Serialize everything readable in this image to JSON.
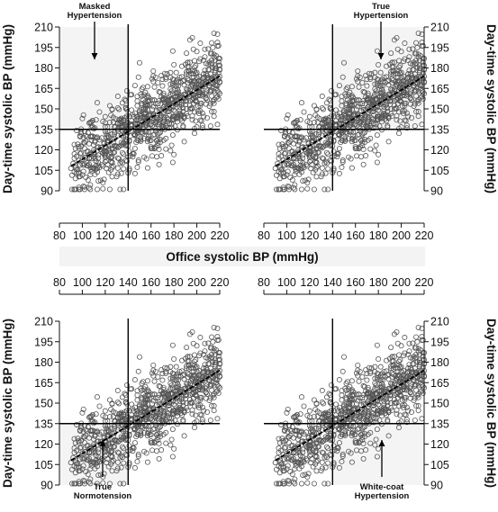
{
  "chart_data": {
    "type": "scatter",
    "xlabel": "Office systolic BP (mmHg)",
    "ylabel": "Day-time systolic BP (mmHg)",
    "xlim": [
      80,
      220
    ],
    "ylim": [
      90,
      210
    ],
    "x_ticks": [
      "80",
      "100",
      "120",
      "140",
      "160",
      "180",
      "200",
      "220"
    ],
    "y_ticks": [
      "90",
      "105",
      "120",
      "135",
      "150",
      "165",
      "180",
      "195",
      "210"
    ],
    "thresholds": {
      "office": 140,
      "daytime": 135
    },
    "regression": {
      "x": [
        90,
        220
      ],
      "y": [
        108,
        174
      ]
    },
    "grid": false,
    "panels": [
      {
        "position": "top-left",
        "annotation_lines": [
          "Masked",
          "Hypertension"
        ],
        "highlighted_quadrant": "upper-left",
        "arrow": "down"
      },
      {
        "position": "top-right",
        "annotation_lines": [
          "True",
          "Hypertension"
        ],
        "highlighted_quadrant": "upper-right",
        "arrow": "down"
      },
      {
        "position": "bottom-left",
        "annotation_lines": [
          "True",
          "Normotension"
        ],
        "highlighted_quadrant": "lower-left",
        "arrow": "up"
      },
      {
        "position": "bottom-right",
        "annotation_lines": [
          "White-coat",
          "Hypertension"
        ],
        "highlighted_quadrant": "lower-right",
        "arrow": "up"
      }
    ],
    "series": [
      {
        "n_points": 900,
        "x_range": [
          90,
          220
        ],
        "y_approx": "108 + 0.508*(x-90) with residual sd ~14"
      }
    ]
  },
  "colors": {
    "points": "#555555",
    "highlight": "#f4f4f4",
    "axis": "#111111",
    "band": "#f3f3f3"
  }
}
